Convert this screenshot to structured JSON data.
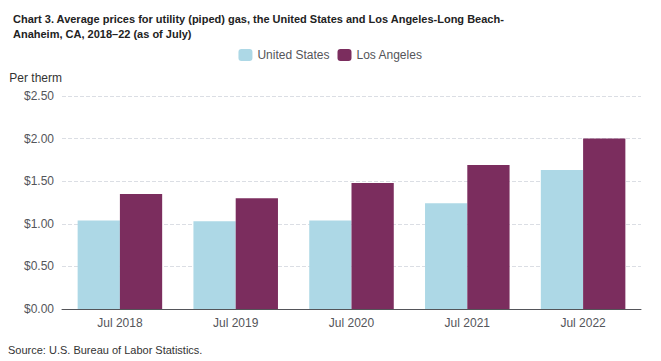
{
  "chart_data": {
    "type": "bar",
    "title": "Chart 3. Average prices for utility (piped) gas, the United States and Los Angeles-Long Beach-\nAnaheim, CA, 2018–22 (as of July)",
    "y_label": "Per therm",
    "annotations": [
      "Source: U.S. Bureau of Labor Statistics."
    ],
    "categories": [
      "Jul 2018",
      "Jul 2019",
      "Jul 2020",
      "Jul 2021",
      "Jul 2022"
    ],
    "series": [
      {
        "name": "United States",
        "color": "#add8e6",
        "values": [
          1.04,
          1.03,
          1.04,
          1.24,
          1.63
        ]
      },
      {
        "name": "Los Angeles",
        "color": "#7b2d5e",
        "values": [
          1.35,
          1.3,
          1.48,
          1.69,
          2.0
        ]
      }
    ],
    "ylim": [
      0,
      2.5
    ],
    "yticks": [
      {
        "value": 0.0,
        "label": "$0.00"
      },
      {
        "value": 0.5,
        "label": "$0.50"
      },
      {
        "value": 1.0,
        "label": "$1.00"
      },
      {
        "value": 1.5,
        "label": "$1.50"
      },
      {
        "value": 2.0,
        "label": "$2.00"
      },
      {
        "value": 2.5,
        "label": "$2.50"
      }
    ],
    "grid": true,
    "legend": "upper center"
  }
}
